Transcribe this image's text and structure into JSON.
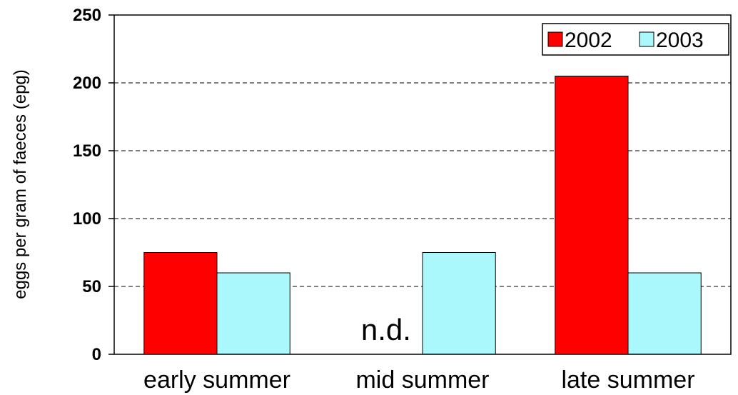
{
  "chart_data": {
    "type": "bar",
    "title": "",
    "xlabel": "",
    "ylabel": "eggs per gram of faeces (epg)",
    "categories": [
      "early summer",
      "mid summer",
      "late summer"
    ],
    "series": [
      {
        "name": "2002",
        "values": [
          75,
          null,
          205
        ],
        "color": "#ff0000"
      },
      {
        "name": "2003",
        "values": [
          60,
          75,
          60
        ],
        "color": "#aaf8fb"
      }
    ],
    "ylim": [
      0,
      250
    ],
    "yticks": [
      "0",
      "50",
      "100",
      "150",
      "200",
      "250"
    ],
    "grid": "dashed horizontal",
    "legend_position": "top-right",
    "annotations": [
      {
        "text": "n.d.",
        "category": "mid summer",
        "series": "2002"
      }
    ]
  }
}
